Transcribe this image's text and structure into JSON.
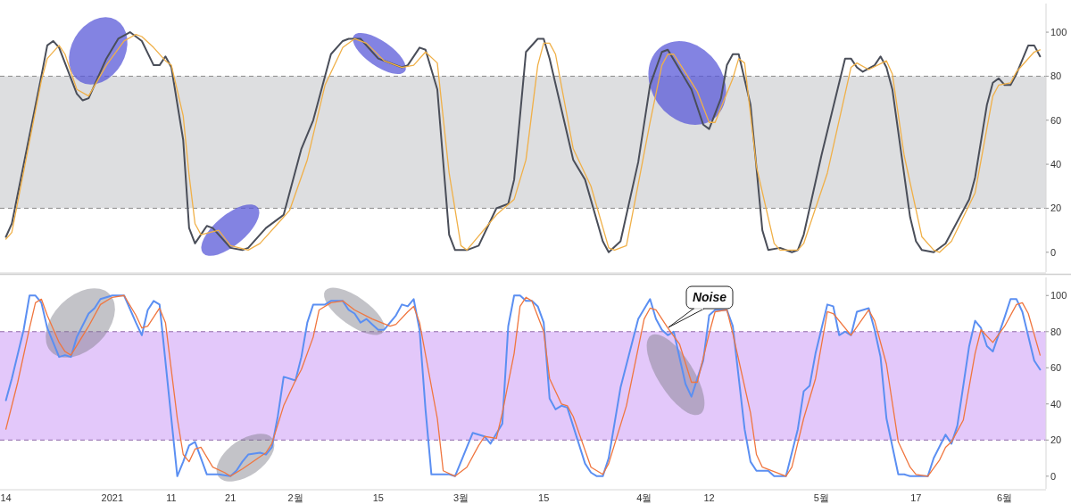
{
  "chart_data": [
    {
      "type": "line",
      "xlim": [
        "2020-12-13",
        "2021-06-08"
      ],
      "ylim": [
        -9,
        113
      ],
      "yticks": [
        0,
        20,
        40,
        60,
        80,
        100
      ],
      "tick_labels": "y",
      "bands": [
        {
          "axis": "y",
          "from": 20,
          "to": 80,
          "color": "#dddee0"
        }
      ],
      "ref_lines": [
        {
          "axis": "y",
          "value": 20,
          "color": "#8a8a8a",
          "line_style": "dashed"
        },
        {
          "axis": "y",
          "value": 80,
          "color": "#8a8a8a",
          "line_style": "dashed"
        }
      ],
      "series": [
        {
          "color": "#4a4e59",
          "x": [
            "2020-12-14",
            "2020-12-15",
            "2020-12-20",
            "2020-12-21",
            "2020-12-22",
            "2020-12-23",
            "2020-12-26",
            "2020-12-27",
            "2020-12-28",
            "2020-12-31",
            "2021-01-02",
            "2021-01-04",
            "2021-01-06",
            "2021-01-08",
            "2021-01-09",
            "2021-01-10",
            "2021-01-11",
            "2021-01-13",
            "2021-01-14",
            "2021-01-15",
            "2021-01-17",
            "2021-01-18",
            "2021-01-21",
            "2021-01-23",
            "2021-01-24",
            "2021-01-27",
            "2021-01-30",
            "2021-02-02",
            "2021-02-04",
            "2021-02-07",
            "2021-02-09",
            "2021-02-10",
            "2021-02-12",
            "2021-02-15",
            "2021-02-19",
            "2021-02-20",
            "2021-02-22",
            "2021-02-23",
            "2021-02-25",
            "2021-02-27",
            "2021-02-28",
            "2021-03-02",
            "2021-03-04",
            "2021-03-07",
            "2021-03-09",
            "2021-03-10",
            "2021-03-12",
            "2021-03-14",
            "2021-03-15",
            "2021-03-16",
            "2021-03-20",
            "2021-03-22",
            "2021-03-25",
            "2021-03-26",
            "2021-03-28",
            "2021-03-31",
            "2021-04-02",
            "2021-04-04",
            "2021-04-05",
            "2021-04-09",
            "2021-04-11",
            "2021-04-12",
            "2021-04-14",
            "2021-04-15",
            "2021-04-16",
            "2021-04-17",
            "2021-04-19",
            "2021-04-21",
            "2021-04-22",
            "2021-04-24",
            "2021-04-26",
            "2021-04-27",
            "2021-04-28",
            "2021-05-01",
            "2021-05-04",
            "2021-05-05",
            "2021-05-06",
            "2021-05-07",
            "2021-05-08",
            "2021-05-10",
            "2021-05-11",
            "2021-05-12",
            "2021-05-13",
            "2021-05-16",
            "2021-05-17",
            "2021-05-18",
            "2021-05-20",
            "2021-05-22",
            "2021-05-26",
            "2021-05-27",
            "2021-05-29",
            "2021-05-30",
            "2021-05-31",
            "2021-06-01",
            "2021-06-02",
            "2021-06-03",
            "2021-06-05",
            "2021-06-06",
            "2021-06-07"
          ],
          "values": [
            7,
            13,
            80,
            94,
            96,
            93,
            72,
            69,
            70,
            88,
            97,
            100,
            96,
            85,
            85,
            89,
            84,
            51,
            11,
            4,
            12,
            11,
            2,
            1,
            2,
            11,
            17,
            47,
            60,
            90,
            96,
            97,
            97,
            88,
            84,
            85,
            93,
            92,
            74,
            8,
            1,
            1,
            3,
            20,
            22,
            33,
            91,
            97,
            97,
            88,
            42,
            33,
            5,
            0,
            5,
            41,
            76,
            91,
            92,
            74,
            58,
            56,
            70,
            85,
            90,
            90,
            67,
            10,
            1,
            2,
            0,
            1,
            8,
            44,
            77,
            88,
            88,
            84,
            82,
            85,
            89,
            84,
            74,
            16,
            5,
            1,
            0,
            4,
            24,
            34,
            67,
            77,
            79,
            76,
            76,
            81,
            94,
            94,
            89
          ]
        },
        {
          "color": "#f0b048",
          "x": [
            "2020-12-14",
            "2020-12-15",
            "2020-12-20",
            "2020-12-21",
            "2020-12-23",
            "2020-12-24",
            "2020-12-26",
            "2020-12-28",
            "2020-12-31",
            "2021-01-03",
            "2021-01-05",
            "2021-01-06",
            "2021-01-08",
            "2021-01-10",
            "2021-01-11",
            "2021-01-13",
            "2021-01-14",
            "2021-01-15",
            "2021-01-16",
            "2021-01-19",
            "2021-01-21",
            "2021-01-24",
            "2021-01-26",
            "2021-01-29",
            "2021-01-31",
            "2021-02-03",
            "2021-02-06",
            "2021-02-09",
            "2021-02-11",
            "2021-02-13",
            "2021-02-16",
            "2021-02-19",
            "2021-02-21",
            "2021-02-23",
            "2021-02-25",
            "2021-02-27",
            "2021-03-01",
            "2021-03-02",
            "2021-03-07",
            "2021-03-10",
            "2021-03-12",
            "2021-03-14",
            "2021-03-15",
            "2021-03-16",
            "2021-03-17",
            "2021-03-20",
            "2021-03-23",
            "2021-03-26",
            "2021-03-27",
            "2021-03-29",
            "2021-03-30",
            "2021-04-02",
            "2021-04-04",
            "2021-04-05",
            "2021-04-06",
            "2021-04-10",
            "2021-04-12",
            "2021-04-13",
            "2021-04-16",
            "2021-04-17",
            "2021-04-18",
            "2021-04-20",
            "2021-04-23",
            "2021-04-24",
            "2021-04-27",
            "2021-04-28",
            "2021-05-02",
            "2021-05-06",
            "2021-05-07",
            "2021-05-09",
            "2021-05-12",
            "2021-05-13",
            "2021-05-15",
            "2021-05-18",
            "2021-05-20",
            "2021-05-21",
            "2021-05-23",
            "2021-05-27",
            "2021-05-30",
            "2021-05-31",
            "2021-06-02",
            "2021-06-03",
            "2021-06-06",
            "2021-06-07"
          ],
          "values": [
            6,
            9,
            78,
            88,
            94,
            90,
            74,
            71,
            85,
            96,
            99,
            98,
            93,
            87,
            85,
            62,
            35,
            13,
            8,
            10,
            3,
            1,
            4,
            13,
            19,
            42,
            76,
            93,
            97,
            95,
            87,
            84,
            85,
            91,
            86,
            36,
            3,
            1,
            17,
            24,
            42,
            85,
            95,
            95,
            90,
            47,
            30,
            2,
            1,
            3,
            17,
            59,
            85,
            90,
            90,
            73,
            59,
            59,
            79,
            88,
            86,
            39,
            4,
            1,
            1,
            4,
            36,
            84,
            86,
            83,
            87,
            81,
            44,
            7,
            1,
            0,
            5,
            27,
            71,
            76,
            77,
            82,
            91,
            92
          ]
        }
      ]
    },
    {
      "type": "line",
      "xlim": [
        "2020-12-13",
        "2021-06-08"
      ],
      "ylim": [
        -7,
        110
      ],
      "yticks": [
        0,
        20,
        40,
        60,
        80,
        100
      ],
      "xticks": [
        {
          "value": "2020-12-14",
          "label": "14"
        },
        {
          "value": "2021-01-01",
          "label": "2021"
        },
        {
          "value": "2021-01-11",
          "label": "11"
        },
        {
          "value": "2021-01-21",
          "label": "21"
        },
        {
          "value": "2021-02-01",
          "label": "2월"
        },
        {
          "value": "2021-02-15",
          "label": "15"
        },
        {
          "value": "2021-03-01",
          "label": "3월"
        },
        {
          "value": "2021-03-15",
          "label": "15"
        },
        {
          "value": "2021-04-01",
          "label": "4월"
        },
        {
          "value": "2021-04-12",
          "label": "12"
        },
        {
          "value": "2021-05-01",
          "label": "5월"
        },
        {
          "value": "2021-05-17",
          "label": "17"
        },
        {
          "value": "2021-06-01",
          "label": "6월"
        }
      ],
      "bands": [
        {
          "axis": "y",
          "from": 20,
          "to": 80,
          "color": "#e3c8fa"
        }
      ],
      "ref_lines": [
        {
          "axis": "y",
          "value": 20,
          "color": "#8f6aa8",
          "line_style": "dashed"
        },
        {
          "axis": "y",
          "value": 80,
          "color": "#8f6aa8",
          "line_style": "dashed"
        }
      ],
      "annotations": [
        "Noise"
      ],
      "series": [
        {
          "color": "#5b8ff2",
          "x": [
            "2020-12-14",
            "2020-12-15",
            "2020-12-17",
            "2020-12-18",
            "2020-12-19",
            "2020-12-20",
            "2020-12-21",
            "2020-12-23",
            "2020-12-24",
            "2020-12-25",
            "2020-12-26",
            "2020-12-28",
            "2020-12-29",
            "2020-12-30",
            "2021-01-01",
            "2021-01-03",
            "2021-01-05",
            "2021-01-06",
            "2021-01-07",
            "2021-01-08",
            "2021-01-09",
            "2021-01-12",
            "2021-01-13",
            "2021-01-14",
            "2021-01-15",
            "2021-01-17",
            "2021-01-19",
            "2021-01-21",
            "2021-01-22",
            "2021-01-23",
            "2021-01-24",
            "2021-01-26",
            "2021-01-27",
            "2021-01-28",
            "2021-01-29",
            "2021-01-30",
            "2021-02-01",
            "2021-02-02",
            "2021-02-03",
            "2021-02-04",
            "2021-02-06",
            "2021-02-07",
            "2021-02-09",
            "2021-02-10",
            "2021-02-11",
            "2021-02-12",
            "2021-02-13",
            "2021-02-14",
            "2021-02-15",
            "2021-02-16",
            "2021-02-18",
            "2021-02-19",
            "2021-02-20",
            "2021-02-21",
            "2021-02-22",
            "2021-02-23",
            "2021-02-24",
            "2021-02-27",
            "2021-02-28",
            "2021-03-03",
            "2021-03-05",
            "2021-03-06",
            "2021-03-08",
            "2021-03-09",
            "2021-03-10",
            "2021-03-11",
            "2021-03-12",
            "2021-03-13",
            "2021-03-14",
            "2021-03-15",
            "2021-03-16",
            "2021-03-17",
            "2021-03-18",
            "2021-03-19",
            "2021-03-22",
            "2021-03-23",
            "2021-03-24",
            "2021-03-25",
            "2021-03-26",
            "2021-03-28",
            "2021-03-31",
            "2021-04-02",
            "2021-04-03",
            "2021-04-04",
            "2021-04-05",
            "2021-04-06",
            "2021-04-08",
            "2021-04-09",
            "2021-04-11",
            "2021-04-12",
            "2021-04-13",
            "2021-04-15",
            "2021-04-16",
            "2021-04-18",
            "2021-04-19",
            "2021-04-20",
            "2021-04-22",
            "2021-04-23",
            "2021-04-25",
            "2021-04-27",
            "2021-04-28",
            "2021-04-29",
            "2021-04-30",
            "2021-05-02",
            "2021-05-03",
            "2021-05-04",
            "2021-05-05",
            "2021-05-06",
            "2021-05-07",
            "2021-05-09",
            "2021-05-10",
            "2021-05-11",
            "2021-05-12",
            "2021-05-14",
            "2021-05-15",
            "2021-05-16",
            "2021-05-19",
            "2021-05-20",
            "2021-05-22",
            "2021-05-23",
            "2021-05-24",
            "2021-05-26",
            "2021-05-27",
            "2021-05-28",
            "2021-05-29",
            "2021-05-30",
            "2021-06-01",
            "2021-06-02",
            "2021-06-03",
            "2021-06-04",
            "2021-06-06",
            "2021-06-07"
          ],
          "values": [
            42,
            54,
            81,
            100,
            100,
            96,
            82,
            66,
            67,
            66,
            77,
            90,
            93,
            98,
            100,
            100,
            85,
            78,
            92,
            97,
            95,
            0,
            8,
            17,
            19,
            1,
            1,
            0,
            3,
            8,
            12,
            13,
            12,
            16,
            33,
            55,
            53,
            66,
            85,
            95,
            95,
            97,
            97,
            92,
            90,
            85,
            87,
            84,
            81,
            81,
            89,
            95,
            94,
            98,
            81,
            37,
            1,
            1,
            0,
            24,
            22,
            18,
            29,
            83,
            100,
            100,
            97,
            97,
            94,
            85,
            43,
            37,
            39,
            38,
            7,
            2,
            0,
            0,
            10,
            49,
            87,
            98,
            87,
            81,
            78,
            80,
            51,
            44,
            64,
            89,
            92,
            92,
            83,
            26,
            8,
            3,
            3,
            0,
            0,
            26,
            47,
            50,
            68,
            95,
            94,
            78,
            80,
            78,
            91,
            93,
            81,
            66,
            32,
            1,
            1,
            0,
            0,
            10,
            23,
            18,
            28,
            72,
            86,
            82,
            72,
            69,
            88,
            98,
            98,
            91,
            64,
            59
          ]
        },
        {
          "color": "#f0763f",
          "x": [
            "2020-12-14",
            "2020-12-16",
            "2020-12-18",
            "2020-12-19",
            "2020-12-20",
            "2020-12-21",
            "2020-12-23",
            "2020-12-24",
            "2020-12-25",
            "2020-12-28",
            "2020-12-30",
            "2021-01-01",
            "2021-01-03",
            "2021-01-05",
            "2021-01-06",
            "2021-01-07",
            "2021-01-09",
            "2021-01-10",
            "2021-01-12",
            "2021-01-13",
            "2021-01-14",
            "2021-01-15",
            "2021-01-16",
            "2021-01-18",
            "2021-01-20",
            "2021-01-21",
            "2021-01-23",
            "2021-01-27",
            "2021-01-28",
            "2021-01-30",
            "2021-02-01",
            "2021-02-02",
            "2021-02-04",
            "2021-02-05",
            "2021-02-07",
            "2021-02-09",
            "2021-02-11",
            "2021-02-14",
            "2021-02-17",
            "2021-02-18",
            "2021-02-20",
            "2021-02-21",
            "2021-02-22",
            "2021-02-25",
            "2021-02-26",
            "2021-02-28",
            "2021-03-02",
            "2021-03-04",
            "2021-03-05",
            "2021-03-07",
            "2021-03-08",
            "2021-03-10",
            "2021-03-11",
            "2021-03-12",
            "2021-03-13",
            "2021-03-15",
            "2021-03-16",
            "2021-03-18",
            "2021-03-19",
            "2021-03-20",
            "2021-03-23",
            "2021-03-25",
            "2021-03-26",
            "2021-03-29",
            "2021-04-01",
            "2021-04-02",
            "2021-04-03",
            "2021-04-05",
            "2021-04-07",
            "2021-04-09",
            "2021-04-10",
            "2021-04-12",
            "2021-04-13",
            "2021-04-15",
            "2021-04-16",
            "2021-04-19",
            "2021-04-20",
            "2021-04-21",
            "2021-04-25",
            "2021-04-26",
            "2021-04-28",
            "2021-04-30",
            "2021-05-02",
            "2021-05-03",
            "2021-05-06",
            "2021-05-09",
            "2021-05-10",
            "2021-05-12",
            "2021-05-14",
            "2021-05-16",
            "2021-05-17",
            "2021-05-19",
            "2021-05-21",
            "2021-05-22",
            "2021-05-23",
            "2021-05-25",
            "2021-05-27",
            "2021-05-28",
            "2021-05-30",
            "2021-06-01",
            "2021-06-03",
            "2021-06-04",
            "2021-06-05",
            "2021-06-07"
          ],
          "values": [
            26,
            52,
            82,
            96,
            98,
            89,
            74,
            69,
            67,
            83,
            95,
            99,
            100,
            89,
            82,
            83,
            93,
            85,
            32,
            12,
            8,
            15,
            16,
            5,
            2,
            0,
            4,
            13,
            18,
            39,
            53,
            59,
            77,
            92,
            96,
            97,
            92,
            87,
            83,
            84,
            91,
            94,
            85,
            32,
            3,
            0,
            5,
            17,
            22,
            21,
            35,
            68,
            94,
            99,
            97,
            80,
            54,
            40,
            39,
            33,
            5,
            1,
            7,
            39,
            87,
            93,
            92,
            82,
            73,
            52,
            52,
            79,
            91,
            92,
            79,
            35,
            12,
            5,
            0,
            5,
            32,
            54,
            91,
            90,
            78,
            92,
            86,
            62,
            19,
            5,
            1,
            0,
            9,
            16,
            19,
            31,
            68,
            81,
            74,
            83,
            95,
            96,
            90,
            67
          ]
        }
      ]
    }
  ]
}
